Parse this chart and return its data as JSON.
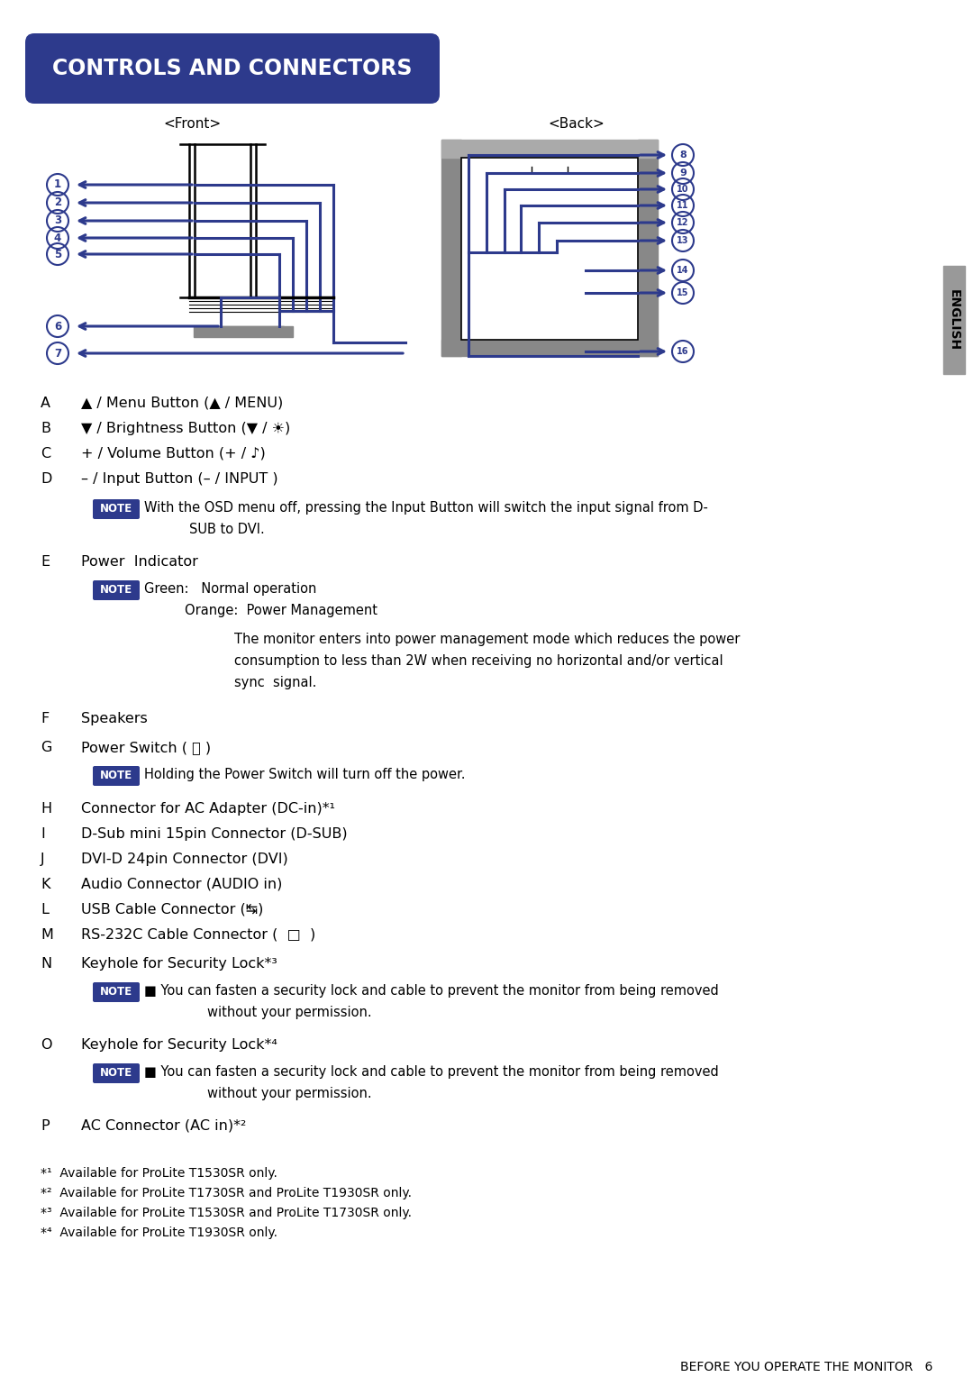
{
  "title": "CONTROLS AND CONNECTORS",
  "title_bg": "#2d3a8c",
  "title_fg": "#ffffff",
  "front_label": "<Front>",
  "back_label": "<Back>",
  "english_label": "ENGLISH",
  "bg_color": "#ffffff",
  "text_color": "#000000",
  "note_bg": "#2d3a8c",
  "note_fg": "#ffffff",
  "diagram_color": "#2d3a8c",
  "footnotes": [
    "*¹  Available for ProLite T1530SR only.",
    "*²  Available for ProLite T1730SR and ProLite T1930SR only.",
    "*³  Available for ProLite T1530SR and ProLite T1730SR only.",
    "*⁴  Available for ProLite T1930SR only."
  ],
  "footer": "BEFORE YOU OPERATE THE MONITOR   6"
}
